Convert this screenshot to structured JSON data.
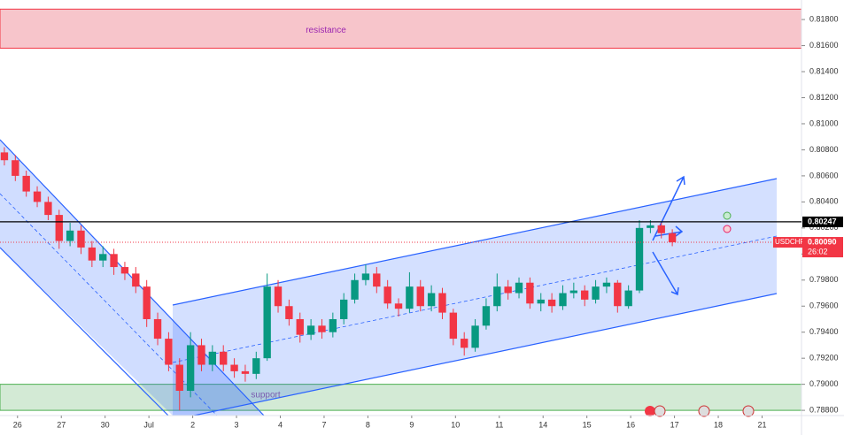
{
  "chart_data": {
    "type": "candlestick",
    "x": [
      -0.3,
      -0.05,
      0.2,
      0.45,
      0.7,
      0.95,
      1.2,
      1.45,
      1.7,
      1.95,
      2.2,
      2.45,
      2.7,
      2.95,
      3.2,
      3.45,
      3.7,
      3.95,
      4.2,
      4.45,
      4.7,
      4.95,
      5.2,
      5.45,
      5.7,
      5.95,
      6.2,
      6.45,
      6.7,
      6.95,
      7.2,
      7.45,
      7.7,
      7.95,
      8.2,
      8.45,
      8.7,
      8.95,
      9.2,
      9.45,
      9.7,
      9.95,
      10.2,
      10.45,
      10.7,
      10.95,
      11.2,
      11.45,
      11.7,
      11.95,
      12.2,
      12.45,
      12.7,
      12.95,
      13.2,
      13.45,
      13.7,
      13.95,
      14.2,
      14.45,
      14.7,
      14.95
    ],
    "open": [
      0.8078,
      0.8072,
      0.806,
      0.8048,
      0.804,
      0.803,
      0.801,
      0.8018,
      0.8005,
      0.7995,
      0.8,
      0.799,
      0.7985,
      0.7975,
      0.795,
      0.7935,
      0.7915,
      0.7895,
      0.793,
      0.7915,
      0.7925,
      0.7915,
      0.791,
      0.7908,
      0.792,
      0.7975,
      0.796,
      0.795,
      0.7938,
      0.7945,
      0.794,
      0.795,
      0.7965,
      0.798,
      0.7985,
      0.7975,
      0.7962,
      0.7958,
      0.7975,
      0.796,
      0.797,
      0.7955,
      0.7935,
      0.7928,
      0.7945,
      0.796,
      0.7975,
      0.797,
      0.7978,
      0.7962,
      0.7965,
      0.796,
      0.797,
      0.7972,
      0.7965,
      0.7975,
      0.7978,
      0.796,
      0.7972,
      0.802,
      0.8022,
      0.8016
    ],
    "high": [
      0.8082,
      0.8076,
      0.8064,
      0.8052,
      0.8044,
      0.8034,
      0.8024,
      0.8022,
      0.801,
      0.8006,
      0.8004,
      0.7994,
      0.799,
      0.798,
      0.7955,
      0.794,
      0.792,
      0.794,
      0.7935,
      0.793,
      0.793,
      0.792,
      0.7915,
      0.7925,
      0.7985,
      0.798,
      0.7965,
      0.7955,
      0.795,
      0.795,
      0.7955,
      0.797,
      0.7985,
      0.7992,
      0.799,
      0.798,
      0.7966,
      0.7986,
      0.798,
      0.7976,
      0.7974,
      0.7958,
      0.794,
      0.795,
      0.7966,
      0.7985,
      0.798,
      0.7982,
      0.7982,
      0.797,
      0.797,
      0.7976,
      0.7978,
      0.7976,
      0.798,
      0.7982,
      0.798,
      0.7976,
      0.8026,
      0.8026,
      0.8024,
      0.8019
    ],
    "low": [
      0.8068,
      0.8056,
      0.8044,
      0.8036,
      0.8026,
      0.8004,
      0.8006,
      0.8,
      0.799,
      0.799,
      0.7984,
      0.798,
      0.797,
      0.7944,
      0.793,
      0.791,
      0.788,
      0.789,
      0.791,
      0.791,
      0.791,
      0.7905,
      0.7902,
      0.7904,
      0.7918,
      0.7955,
      0.7945,
      0.7932,
      0.7934,
      0.7935,
      0.7936,
      0.7946,
      0.7962,
      0.7976,
      0.797,
      0.7958,
      0.7952,
      0.7955,
      0.7956,
      0.7956,
      0.795,
      0.793,
      0.7922,
      0.7925,
      0.7942,
      0.7956,
      0.7965,
      0.7966,
      0.7958,
      0.7956,
      0.7955,
      0.7957,
      0.7966,
      0.796,
      0.7962,
      0.797,
      0.7955,
      0.7958,
      0.797,
      0.8016,
      0.8012,
      0.8006
    ],
    "close": [
      0.8072,
      0.806,
      0.8048,
      0.804,
      0.803,
      0.801,
      0.8018,
      0.8005,
      0.7995,
      0.8,
      0.799,
      0.7985,
      0.7975,
      0.795,
      0.7935,
      0.7915,
      0.7895,
      0.793,
      0.7915,
      0.7925,
      0.7915,
      0.791,
      0.7908,
      0.792,
      0.7975,
      0.796,
      0.795,
      0.7938,
      0.7945,
      0.794,
      0.795,
      0.7965,
      0.798,
      0.7985,
      0.7975,
      0.7962,
      0.7958,
      0.7975,
      0.796,
      0.797,
      0.7955,
      0.7935,
      0.7928,
      0.7945,
      0.796,
      0.7975,
      0.797,
      0.7978,
      0.7962,
      0.7965,
      0.796,
      0.797,
      0.7972,
      0.7965,
      0.7975,
      0.7978,
      0.796,
      0.7972,
      0.802,
      0.8022,
      0.8016,
      0.8009
    ],
    "up_color": "#089981",
    "down_color": "#f23645",
    "xlim": [
      -0.4,
      17.9
    ],
    "xticks": [
      {
        "value": 0,
        "label": "26"
      },
      {
        "value": 1,
        "label": "27"
      },
      {
        "value": 2,
        "label": "30"
      },
      {
        "value": 3,
        "label": "Jul"
      },
      {
        "value": 4,
        "label": "2"
      },
      {
        "value": 5,
        "label": "3"
      },
      {
        "value": 6,
        "label": "4"
      },
      {
        "value": 7,
        "label": "7"
      },
      {
        "value": 8,
        "label": "8"
      },
      {
        "value": 9,
        "label": "9"
      },
      {
        "value": 10,
        "label": "10"
      },
      {
        "value": 11,
        "label": "11"
      },
      {
        "value": 12,
        "label": "14"
      },
      {
        "value": 13,
        "label": "15"
      },
      {
        "value": 14,
        "label": "16"
      },
      {
        "value": 15,
        "label": "17"
      },
      {
        "value": 16,
        "label": "18"
      },
      {
        "value": 17,
        "label": "21"
      }
    ],
    "ylim": [
      0.7876,
      0.8195
    ],
    "yticks": [
      {
        "value": 0.788,
        "label": "0.78800"
      },
      {
        "value": 0.79,
        "label": "0.79000"
      },
      {
        "value": 0.792,
        "label": "0.79200"
      },
      {
        "value": 0.794,
        "label": "0.79400"
      },
      {
        "value": 0.796,
        "label": "0.79600"
      },
      {
        "value": 0.798,
        "label": "0.79800"
      },
      {
        "value": 0.8,
        "label": "0.80000"
      },
      {
        "value": 0.802,
        "label": "0.80200"
      },
      {
        "value": 0.804,
        "label": "0.80400"
      },
      {
        "value": 0.806,
        "label": "0.80600"
      },
      {
        "value": 0.808,
        "label": "0.80800"
      },
      {
        "value": 0.81,
        "label": "0.81000"
      },
      {
        "value": 0.812,
        "label": "0.81200"
      },
      {
        "value": 0.814,
        "label": "0.81400"
      },
      {
        "value": 0.816,
        "label": "0.81600"
      },
      {
        "value": 0.818,
        "label": "0.81800"
      }
    ],
    "zones": [
      {
        "label": "resistance",
        "low": 0.8158,
        "high": 0.8188,
        "color": "#f7c5cb"
      },
      {
        "label": "support",
        "low": 0.788,
        "high": 0.79,
        "color": "#d3ead5"
      }
    ],
    "price_line": {
      "value": 0.80247,
      "label": "0.80247"
    },
    "last_price": {
      "symbol": "USDCHF",
      "value": 0.8009,
      "label": "0.80090",
      "countdown": "26:02"
    }
  }
}
